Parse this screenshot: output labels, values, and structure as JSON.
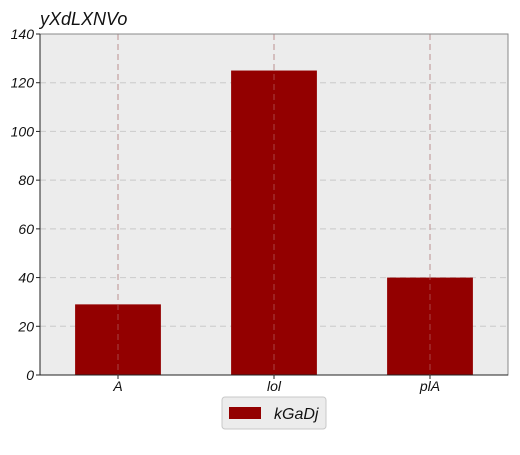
{
  "chart_data": {
    "type": "bar",
    "title": "yXdLXNVo",
    "categories": [
      "A",
      "lol",
      "plA"
    ],
    "series": [
      {
        "name": "kGaDj",
        "values": [
          29,
          125,
          40
        ],
        "color": "#930000"
      }
    ],
    "ylim": [
      0,
      140
    ],
    "yticks": [
      0,
      20,
      40,
      60,
      80,
      100,
      120,
      140
    ],
    "grid": true,
    "legend": "bottom-center",
    "colors": {
      "plot_background": "#ececec",
      "grid": "#cfcfcf",
      "bar": "#930000"
    }
  }
}
